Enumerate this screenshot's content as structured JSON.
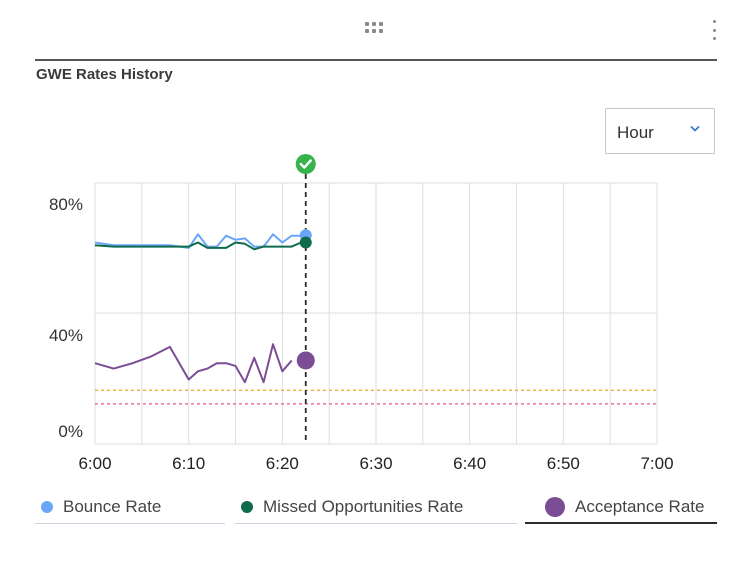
{
  "panel": {
    "title": "GWE Rates History"
  },
  "toolbar": {
    "drag_icon": "drag-handle-icon",
    "menu_icon": "kebab-menu-icon"
  },
  "range_select": {
    "value": "Hour",
    "icon": "chevron-down-icon"
  },
  "colors": {
    "bounce": "#6aa6f8",
    "missed": "#0f6b4e",
    "acceptance": "#7b4d95",
    "threshold_orange": "#f0a93a",
    "threshold_red": "#ea5a78",
    "marker": "#2a2a2a",
    "check": "#36b34a"
  },
  "chart_data": {
    "type": "line",
    "x_ticks": [
      "6:00",
      "6:10",
      "6:20",
      "6:30",
      "6:40",
      "6:50",
      "7:00"
    ],
    "y_ticks": [
      "0%",
      "40%",
      "80%"
    ],
    "ylim": [
      0,
      80
    ],
    "xlim_minutes": [
      0,
      60
    ],
    "grid": true,
    "legend_position": "bottom",
    "series": [
      {
        "name": "Bounce Rate",
        "color": "#6aa6f8",
        "points": [
          [
            0,
            69.5
          ],
          [
            2,
            68.5
          ],
          [
            4,
            68.5
          ],
          [
            6,
            68.5
          ],
          [
            8,
            68.5
          ],
          [
            9,
            68
          ],
          [
            10,
            67.5
          ],
          [
            11,
            72.5
          ],
          [
            12,
            68
          ],
          [
            13,
            68
          ],
          [
            14,
            72
          ],
          [
            15,
            70.5
          ],
          [
            16,
            71
          ],
          [
            17,
            68
          ],
          [
            18,
            68
          ],
          [
            19,
            72.5
          ],
          [
            20,
            69.5
          ],
          [
            21,
            72
          ],
          [
            22,
            72
          ]
        ]
      },
      {
        "name": "Missed Opportunities Rate",
        "color": "#0f6b4e",
        "points": [
          [
            0,
            68.5
          ],
          [
            2,
            68
          ],
          [
            4,
            68
          ],
          [
            6,
            68
          ],
          [
            8,
            68
          ],
          [
            10,
            68
          ],
          [
            11,
            69.5
          ],
          [
            12,
            67.5
          ],
          [
            13,
            67.5
          ],
          [
            14,
            67.5
          ],
          [
            15,
            69.5
          ],
          [
            16,
            69
          ],
          [
            17,
            67
          ],
          [
            18,
            68
          ],
          [
            19,
            68
          ],
          [
            20,
            68
          ],
          [
            21,
            68
          ],
          [
            22,
            69.5
          ]
        ]
      },
      {
        "name": "Acceptance Rate",
        "color": "#7b4d95",
        "points": [
          [
            0,
            25
          ],
          [
            2,
            23
          ],
          [
            4,
            25
          ],
          [
            6,
            27.5
          ],
          [
            8,
            31
          ],
          [
            10,
            19
          ],
          [
            11,
            22
          ],
          [
            12,
            23
          ],
          [
            13,
            25
          ],
          [
            14,
            25
          ],
          [
            15,
            24
          ],
          [
            16,
            18
          ],
          [
            17,
            27
          ],
          [
            18,
            18
          ],
          [
            19,
            32
          ],
          [
            20,
            22
          ],
          [
            21,
            26
          ]
        ]
      }
    ],
    "threshold_lines": [
      {
        "value": 15,
        "color": "#f0a93a"
      },
      {
        "value": 10,
        "color": "#ea5a78"
      }
    ],
    "current_marker": {
      "x": 22.5,
      "icon": "check-circle-icon"
    }
  },
  "legend": [
    {
      "label": "Bounce Rate",
      "color": "#6aa6f8",
      "selected": false
    },
    {
      "label": "Missed Opportunities Rate",
      "color": "#0f6b4e",
      "selected": false
    },
    {
      "label": "Acceptance Rate",
      "color": "#7b4d95",
      "selected": true
    }
  ]
}
